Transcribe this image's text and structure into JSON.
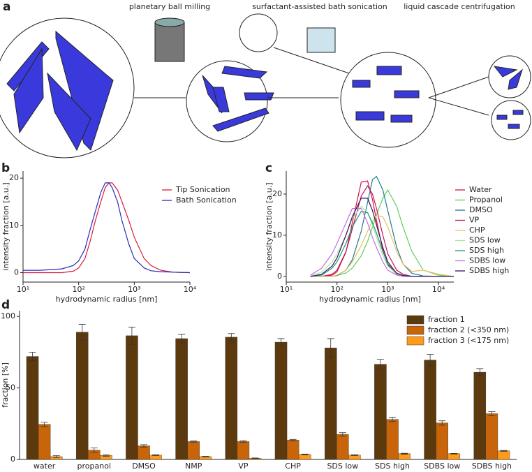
{
  "diagram": {
    "label": "a",
    "steps": [
      "planetary ball milling",
      "surfactant-assisted bath sonication",
      "liquid cascade centrifugation"
    ]
  },
  "chart_data": [
    {
      "type": "line",
      "panel": "b",
      "xlabel": "hydrodynamic radius [nm]",
      "ylabel": "intensity fraction [a.u.]",
      "xscale": "log",
      "xlim": [
        10,
        10000
      ],
      "xticks": [
        {
          "value": 10,
          "label": "10¹"
        },
        {
          "value": 100,
          "label": "10²"
        },
        {
          "value": 1000,
          "label": "10³"
        },
        {
          "value": 10000,
          "label": "10⁴"
        }
      ],
      "ylim": [
        -2,
        21.5
      ],
      "yticks": [
        0,
        10,
        20
      ],
      "x": [
        10,
        20,
        50,
        80,
        100,
        130,
        160,
        200,
        250,
        300,
        350,
        400,
        500,
        600,
        800,
        1000,
        1500,
        2000,
        3000,
        5000,
        10000
      ],
      "series": [
        {
          "name": "Tip Sonication",
          "color": "#d81b3c",
          "values": [
            0,
            0,
            0,
            0.3,
            1,
            3,
            6.5,
            11,
            15,
            18,
            19,
            19,
            17.5,
            15,
            11,
            7.5,
            3,
            1.5,
            0.5,
            0.1,
            0
          ]
        },
        {
          "name": "Bath Sonication",
          "color": "#2b2bb8",
          "values": [
            0.5,
            0.5,
            0.8,
            1.5,
            2.5,
            5,
            9,
            13,
            17,
            19,
            19,
            18,
            15,
            11,
            6,
            3,
            1,
            0.4,
            0.2,
            0.1,
            0
          ]
        }
      ]
    },
    {
      "type": "line",
      "panel": "c",
      "xlabel": "hydrodynamic radius [nm]",
      "ylabel": "intensity fraction [a.u.]",
      "xscale": "log",
      "xlim": [
        10,
        20000
      ],
      "xticks": [
        {
          "value": 10,
          "label": "10¹"
        },
        {
          "value": 100,
          "label": "10²"
        },
        {
          "value": 1000,
          "label": "10³"
        },
        {
          "value": 10000,
          "label": "10⁴"
        }
      ],
      "ylim": [
        -1.4,
        25.6
      ],
      "yticks": [
        0,
        10,
        20
      ],
      "x": [
        30,
        50,
        80,
        100,
        150,
        200,
        300,
        400,
        500,
        600,
        800,
        1000,
        1500,
        2000,
        3000,
        5000,
        10000,
        20000
      ],
      "series": [
        {
          "name": "Water",
          "color": "#d4143c",
          "values": [
            0,
            0,
            0.3,
            1.1,
            5.9,
            13,
            22.9,
            23.2,
            18.7,
            13.6,
            6.3,
            2.8,
            0.4,
            0.1,
            0,
            0,
            0,
            0
          ]
        },
        {
          "name": "Propanol",
          "color": "#5ccf5c",
          "values": [
            0,
            0,
            0,
            0.2,
            0.8,
            2,
            5,
            8.5,
            12,
            15,
            19,
            21,
            17,
            12,
            6,
            1.5,
            0.3,
            0
          ]
        },
        {
          "name": "DMSO",
          "color": "#1e7a8c",
          "values": [
            0,
            0,
            0,
            0.2,
            1.5,
            4,
            11,
            18,
            23.5,
            24.3,
            21,
            16,
            7,
            3,
            0.7,
            0.1,
            0,
            0
          ]
        },
        {
          "name": "VP",
          "color": "#c0185a",
          "values": [
            0,
            0,
            0.5,
            1.5,
            6,
            11.5,
            19.5,
            22,
            20,
            16.5,
            10,
            5.5,
            1.5,
            0.5,
            0,
            0,
            0,
            0
          ]
        },
        {
          "name": "CHP",
          "color": "#e8c060",
          "values": [
            0,
            0,
            0,
            0.3,
            1.5,
            3.5,
            7.5,
            11,
            13.5,
            14.7,
            14.5,
            12,
            6,
            3,
            1.2,
            1.5,
            0.5,
            0
          ]
        },
        {
          "name": "SDS low",
          "color": "#a8e8a0",
          "values": [
            0.2,
            1,
            3.5,
            5.5,
            10,
            14,
            17,
            15.5,
            12.5,
            9.5,
            5,
            2.5,
            0.5,
            0.1,
            0,
            0,
            0,
            0
          ]
        },
        {
          "name": "SDS high",
          "color": "#1a9a7a",
          "values": [
            0,
            0.3,
            2,
            3.5,
            8,
            12,
            15.8,
            15.5,
            13,
            10.5,
            6,
            3,
            0.8,
            0.2,
            0,
            0,
            0,
            0
          ]
        },
        {
          "name": "SDBS low",
          "color": "#c070e0",
          "values": [
            0.3,
            2,
            5.5,
            8,
            13,
            16.5,
            16.5,
            13,
            9.5,
            7,
            3.5,
            1.5,
            0.3,
            0,
            0,
            0,
            0,
            0
          ]
        },
        {
          "name": "SDBS high",
          "color": "#3a1060",
          "values": [
            0,
            0.5,
            2.5,
            4.5,
            10,
            14.5,
            19,
            19,
            16,
            12.5,
            7,
            3.5,
            0.7,
            0.2,
            0,
            0,
            0,
            0
          ]
        }
      ]
    },
    {
      "type": "bar",
      "panel": "d",
      "ylabel": "fraction [%]",
      "ylim": [
        0,
        104
      ],
      "yticks": [
        0,
        50,
        100
      ],
      "categories": [
        "water",
        "propanol",
        "DMSO",
        "NMP",
        "VP",
        "CHP",
        "SDS low",
        "SDS high",
        "SDBS low",
        "SDBS high"
      ],
      "series": [
        {
          "name": "fraction 1",
          "color": "#5c3a0e",
          "values": [
            72,
            89,
            86.5,
            84.5,
            85.5,
            82,
            78,
            66.5,
            69.5,
            61
          ],
          "errors": [
            3,
            5.5,
            6,
            3,
            2.5,
            2.5,
            6.5,
            3.5,
            4,
            2.5
          ]
        },
        {
          "name": "fraction 2 (<350 nm)",
          "color": "#c8640a",
          "values": [
            24.5,
            6.5,
            9.5,
            12.5,
            12.5,
            13.5,
            17.5,
            28,
            25.5,
            32
          ],
          "errors": [
            1.5,
            1.5,
            0.8,
            0.4,
            0.6,
            0.5,
            1.2,
            1.5,
            1.5,
            1.5
          ]
        },
        {
          "name": "fraction 3 (<175 nm)",
          "color": "#ff9a1a",
          "values": [
            2,
            2.8,
            3,
            2,
            0.8,
            3.5,
            3,
            4,
            4,
            6
          ],
          "errors": [
            0.7,
            0.5,
            0.3,
            0.2,
            0.2,
            0.3,
            0.3,
            0.3,
            0.2,
            0.3
          ]
        }
      ]
    }
  ]
}
